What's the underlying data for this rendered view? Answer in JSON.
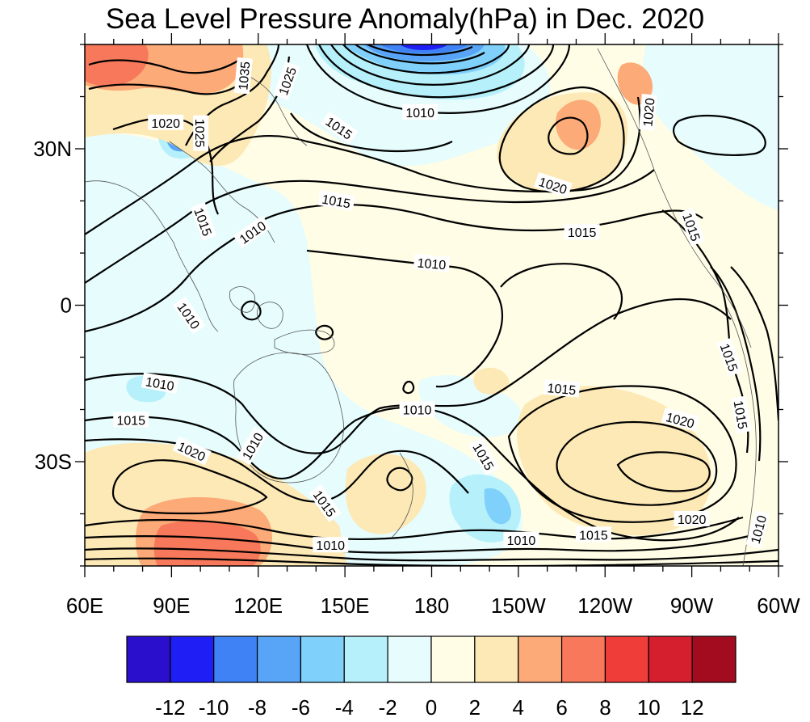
{
  "title": "Sea Level Pressure Anomaly(hPa) in Dec. 2020",
  "lat_labels": [
    {
      "label": "30N",
      "lat": 30
    },
    {
      "label": "0",
      "lat": 0
    },
    {
      "label": "30S",
      "lat": -30
    }
  ],
  "lon_labels": [
    {
      "label": "60E",
      "lon": 60
    },
    {
      "label": "90E",
      "lon": 90
    },
    {
      "label": "120E",
      "lon": 120
    },
    {
      "label": "150E",
      "lon": 150
    },
    {
      "label": "180",
      "lon": 180
    },
    {
      "label": "150W",
      "lon": 210
    },
    {
      "label": "120W",
      "lon": 240
    },
    {
      "label": "90W",
      "lon": 270
    },
    {
      "label": "60W",
      "lon": 300
    }
  ],
  "map_extent": {
    "lon_min": 60,
    "lon_max": 300,
    "lat_min": -50,
    "lat_max": 50
  },
  "colorbar": {
    "labels": [
      "-12",
      "-10",
      "-8",
      "-6",
      "-4",
      "-2",
      "0",
      "2",
      "4",
      "6",
      "8",
      "10",
      "12"
    ],
    "colors": [
      "#2a10cc",
      "#1f1ff5",
      "#3e82f6",
      "#58a4f7",
      "#7fd0fb",
      "#b6f0fb",
      "#e6fcfd",
      "#fffde6",
      "#fde9b5",
      "#fbaa78",
      "#f7785a",
      "#ef3d3a",
      "#d51e2e",
      "#a20c1e"
    ]
  },
  "contour_labels": [
    {
      "text": "1035",
      "lon": 115,
      "lat": 44,
      "rot": -85
    },
    {
      "text": "1025",
      "lon": 130,
      "lat": 43,
      "rot": -70
    },
    {
      "text": "1020",
      "lon": 88,
      "lat": 35,
      "rot": 0
    },
    {
      "text": "1025",
      "lon": 100,
      "lat": 33,
      "rot": 90
    },
    {
      "text": "1010",
      "lon": 176,
      "lat": 37,
      "rot": 0
    },
    {
      "text": "1015",
      "lon": 148,
      "lat": 34,
      "rot": 35
    },
    {
      "text": "1020",
      "lon": 255,
      "lat": 37,
      "rot": -85
    },
    {
      "text": "1020",
      "lon": 222,
      "lat": 23,
      "rot": 18
    },
    {
      "text": "1015",
      "lon": 147,
      "lat": 20,
      "rot": 10
    },
    {
      "text": "1015",
      "lon": 101,
      "lat": 16,
      "rot": 70
    },
    {
      "text": "1010",
      "lon": 118,
      "lat": 14,
      "rot": -35
    },
    {
      "text": "1015",
      "lon": 232,
      "lat": 14,
      "rot": 0
    },
    {
      "text": "1015",
      "lon": 270,
      "lat": 15,
      "rot": 70
    },
    {
      "text": "1010",
      "lon": 180,
      "lat": 8,
      "rot": 5
    },
    {
      "text": "1010",
      "lon": 96,
      "lat": -2,
      "rot": 55
    },
    {
      "text": "1010",
      "lon": 86,
      "lat": -15,
      "rot": 10
    },
    {
      "text": "1015",
      "lon": 76,
      "lat": -22,
      "rot": 0
    },
    {
      "text": "1010",
      "lon": 175,
      "lat": -20,
      "rot": 0
    },
    {
      "text": "1015",
      "lon": 225,
      "lat": -16,
      "rot": 5
    },
    {
      "text": "1015",
      "lon": 283,
      "lat": -10,
      "rot": 70
    },
    {
      "text": "1015",
      "lon": 287,
      "lat": -21,
      "rot": 80
    },
    {
      "text": "1020",
      "lon": 97,
      "lat": -28,
      "rot": 25
    },
    {
      "text": "1010",
      "lon": 118,
      "lat": -27,
      "rot": -60
    },
    {
      "text": "1015",
      "lon": 198,
      "lat": -29,
      "rot": 60
    },
    {
      "text": "1020",
      "lon": 266,
      "lat": -22,
      "rot": 15
    },
    {
      "text": "1015",
      "lon": 143,
      "lat": -38,
      "rot": 55
    },
    {
      "text": "1020",
      "lon": 270,
      "lat": -41,
      "rot": 0
    },
    {
      "text": "1015",
      "lon": 236,
      "lat": -44,
      "rot": 0
    },
    {
      "text": "1010",
      "lon": 211,
      "lat": -45,
      "rot": 0
    },
    {
      "text": "1010",
      "lon": 145,
      "lat": -46,
      "rot": 0
    },
    {
      "text": "1010",
      "lon": 293,
      "lat": -43,
      "rot": -75
    }
  ]
}
